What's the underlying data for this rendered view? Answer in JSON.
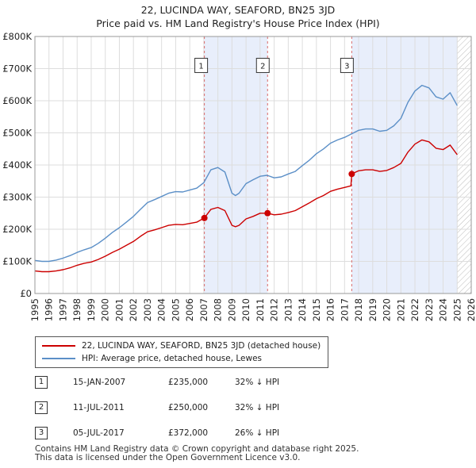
{
  "title_line1": "22, LUCINDA WAY, SEAFORD, BN25 3JD",
  "title_line2": "Price paid vs. HM Land Registry's House Price Index (HPI)",
  "legend": {
    "property_label": "22, LUCINDA WAY, SEAFORD, BN25 3JD (detached house)",
    "hpi_label": "HPI: Average price, detached house, Lewes"
  },
  "sales": [
    {
      "num": "1",
      "date": "15-JAN-2007",
      "price": "£235,000",
      "hpi": "32% ↓ HPI"
    },
    {
      "num": "2",
      "date": "11-JUL-2011",
      "price": "£250,000",
      "hpi": "32% ↓ HPI"
    },
    {
      "num": "3",
      "date": "05-JUL-2017",
      "price": "£372,000",
      "hpi": "26% ↓ HPI"
    }
  ],
  "footer_line1": "Contains HM Land Registry data © Crown copyright and database right 2025.",
  "footer_line2": "This data is licensed under the Open Government Licence v3.0.",
  "colors": {
    "property": "#cc0000",
    "hpi": "#5b8fc7",
    "shade": "#e8eefb",
    "marker": "#cc0000"
  },
  "chart_data": {
    "type": "line",
    "xlim": [
      1995,
      2026
    ],
    "ylim": [
      0,
      800000
    ],
    "x_ticks": [
      "1995",
      "1996",
      "1997",
      "1998",
      "1999",
      "2000",
      "2001",
      "2002",
      "2003",
      "2004",
      "2005",
      "2006",
      "2007",
      "2008",
      "2009",
      "2010",
      "2011",
      "2012",
      "2013",
      "2014",
      "2015",
      "2016",
      "2017",
      "2018",
      "2019",
      "2020",
      "2021",
      "2022",
      "2023",
      "2024",
      "2025",
      "2026"
    ],
    "y_ticks": [
      {
        "value": 0,
        "label": "£0"
      },
      {
        "value": 100000,
        "label": "£100K"
      },
      {
        "value": 200000,
        "label": "£200K"
      },
      {
        "value": 300000,
        "label": "£300K"
      },
      {
        "value": 400000,
        "label": "£400K"
      },
      {
        "value": 500000,
        "label": "£500K"
      },
      {
        "value": 600000,
        "label": "£600K"
      },
      {
        "value": 700000,
        "label": "£700K"
      },
      {
        "value": 800000,
        "label": "£800K"
      }
    ],
    "grid": true,
    "shaded_periods": [
      [
        2007.04,
        2011.53
      ],
      [
        2017.51,
        2025.0
      ]
    ],
    "forecast_hatch_from": 2025.0,
    "sale_points": [
      {
        "label": "1",
        "x": 2007.04,
        "y": 235000
      },
      {
        "label": "2",
        "x": 2011.53,
        "y": 250000
      },
      {
        "label": "3",
        "x": 2017.51,
        "y": 372000
      }
    ],
    "series": [
      {
        "name": "22, LUCINDA WAY, SEAFORD, BN25 3JD (detached house)",
        "x": [
          1995.0,
          1995.5,
          1996.0,
          1996.5,
          1997.0,
          1997.5,
          1998.0,
          1998.5,
          1999.0,
          1999.5,
          2000.0,
          2000.5,
          2001.0,
          2001.5,
          2002.0,
          2002.5,
          2003.0,
          2003.5,
          2004.0,
          2004.5,
          2005.0,
          2005.5,
          2006.0,
          2006.5,
          2007.04,
          2007.5,
          2008.0,
          2008.5,
          2009.0,
          2009.25,
          2009.5,
          2010.0,
          2010.5,
          2011.0,
          2011.53,
          2012.0,
          2012.5,
          2013.0,
          2013.5,
          2014.0,
          2014.5,
          2015.0,
          2015.5,
          2016.0,
          2016.5,
          2017.0,
          2017.45,
          2017.51,
          2018.0,
          2018.5,
          2019.0,
          2019.5,
          2020.0,
          2020.5,
          2021.0,
          2021.5,
          2022.0,
          2022.5,
          2023.0,
          2023.5,
          2024.0,
          2024.5,
          2025.0
        ],
        "y": [
          70000,
          68000,
          68000,
          70000,
          74000,
          80000,
          88000,
          94000,
          98000,
          106000,
          116000,
          128000,
          138000,
          150000,
          162000,
          178000,
          192000,
          198000,
          205000,
          212000,
          215000,
          214000,
          218000,
          222000,
          235000,
          262000,
          268000,
          258000,
          212000,
          208000,
          212000,
          232000,
          240000,
          250000,
          250000,
          245000,
          247000,
          252000,
          258000,
          270000,
          282000,
          295000,
          305000,
          318000,
          325000,
          330000,
          335000,
          372000,
          382000,
          385000,
          385000,
          380000,
          383000,
          392000,
          405000,
          440000,
          465000,
          478000,
          472000,
          452000,
          448000,
          462000,
          432000
        ]
      },
      {
        "name": "HPI: Average price, detached house, Lewes",
        "x": [
          1995.0,
          1995.5,
          1996.0,
          1996.5,
          1997.0,
          1997.5,
          1998.0,
          1998.5,
          1999.0,
          1999.5,
          2000.0,
          2000.5,
          2001.0,
          2001.5,
          2002.0,
          2002.5,
          2003.0,
          2003.5,
          2004.0,
          2004.5,
          2005.0,
          2005.5,
          2006.0,
          2006.5,
          2007.0,
          2007.5,
          2008.0,
          2008.5,
          2009.0,
          2009.25,
          2009.5,
          2010.0,
          2010.5,
          2011.0,
          2011.5,
          2012.0,
          2012.5,
          2013.0,
          2013.5,
          2014.0,
          2014.5,
          2015.0,
          2015.5,
          2016.0,
          2016.5,
          2017.0,
          2017.5,
          2018.0,
          2018.5,
          2019.0,
          2019.5,
          2020.0,
          2020.5,
          2021.0,
          2021.5,
          2022.0,
          2022.5,
          2023.0,
          2023.5,
          2024.0,
          2024.5,
          2025.0
        ],
        "y": [
          103000,
          100000,
          100000,
          104000,
          110000,
          118000,
          128000,
          136000,
          143000,
          156000,
          172000,
          190000,
          205000,
          222000,
          240000,
          262000,
          283000,
          292000,
          302000,
          312000,
          317000,
          316000,
          322000,
          328000,
          345000,
          385000,
          392000,
          378000,
          312000,
          305000,
          312000,
          342000,
          354000,
          365000,
          368000,
          360000,
          363000,
          372000,
          380000,
          398000,
          415000,
          435000,
          450000,
          468000,
          478000,
          486000,
          497000,
          508000,
          512000,
          512000,
          505000,
          508000,
          522000,
          545000,
          595000,
          630000,
          648000,
          640000,
          612000,
          605000,
          625000,
          585000
        ]
      }
    ]
  }
}
